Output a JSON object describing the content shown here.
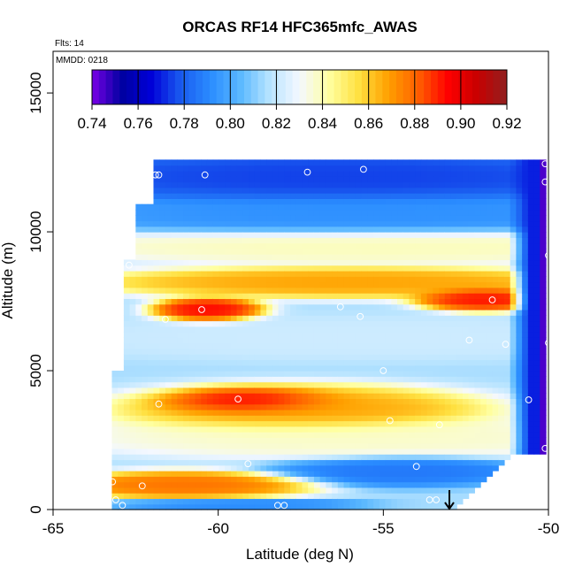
{
  "chart_data": {
    "type": "heatmap",
    "title": "ORCAS RF14 HFC365mfc_AWAS",
    "flights_label": "Flts: 14",
    "date_label": "MMDD: 0218",
    "xlabel": "Latitude (deg N)",
    "ylabel": "Altitude (m)",
    "xlim": [
      -65,
      -50
    ],
    "ylim": [
      0,
      16500
    ],
    "x_ticks": [
      -65,
      -60,
      -55,
      -50
    ],
    "x_tick_labels": [
      "-65",
      "-60",
      "-55",
      "-50"
    ],
    "y_ticks": [
      0,
      5000,
      10000,
      15000
    ],
    "y_tick_labels": [
      "0",
      "5000",
      "10000",
      "15000"
    ],
    "colorbar": {
      "range": [
        0.74,
        0.92
      ],
      "ticks": [
        0.74,
        0.76,
        0.78,
        0.8,
        0.82,
        0.84,
        0.86,
        0.88,
        0.9,
        0.92
      ],
      "tick_labels": [
        "0.74",
        "0.76",
        "0.78",
        "0.80",
        "0.82",
        "0.84",
        "0.86",
        "0.88",
        "0.90",
        "0.92"
      ],
      "colors": [
        "#7a00e6",
        "#0000a0",
        "#0000d8",
        "#1a5cf0",
        "#2a8cff",
        "#5ab8ff",
        "#b8e4ff",
        "#f4f8ff",
        "#ffffa0",
        "#ffe040",
        "#ffa000",
        "#ff6000",
        "#ff0000",
        "#c80000",
        "#902020"
      ]
    },
    "field": {
      "lat_range": [
        -63.4,
        -50.0
      ],
      "alt_range": [
        0,
        12500
      ],
      "layers": [
        {
          "alt": 12000,
          "lat_c": -56.5,
          "lat_w": 10,
          "alt_w": 900,
          "value": 0.773
        },
        {
          "alt": 10600,
          "lat_c": -55.5,
          "lat_w": 9,
          "alt_w": 700,
          "value": 0.792
        },
        {
          "alt": 9500,
          "lat_c": -55.0,
          "lat_w": 10,
          "alt_w": 600,
          "value": 0.84
        },
        {
          "alt": 8200,
          "lat_c": -56.0,
          "lat_w": 7,
          "alt_w": 500,
          "value": 0.87
        },
        {
          "alt": 7600,
          "lat_c": -52.0,
          "lat_w": 1.8,
          "alt_w": 400,
          "value": 0.895
        },
        {
          "alt": 7200,
          "lat_c": -60.3,
          "lat_w": 1.5,
          "alt_w": 400,
          "value": 0.897
        },
        {
          "alt": 6200,
          "lat_c": -56.0,
          "lat_w": 9,
          "alt_w": 700,
          "value": 0.822
        },
        {
          "alt": 3900,
          "lat_c": -59.0,
          "lat_w": 2.4,
          "alt_w": 450,
          "value": 0.905
        },
        {
          "alt": 3600,
          "lat_c": -57.5,
          "lat_w": 5,
          "alt_w": 800,
          "value": 0.87
        },
        {
          "alt": 2600,
          "lat_c": -56.0,
          "lat_w": 8,
          "alt_w": 700,
          "value": 0.838
        },
        {
          "alt": 1400,
          "lat_c": -54.5,
          "lat_w": 3.5,
          "alt_w": 500,
          "value": 0.785
        },
        {
          "alt": 900,
          "lat_c": -61.0,
          "lat_w": 3.5,
          "alt_w": 450,
          "value": 0.88
        },
        {
          "alt": 200,
          "lat_c": -59.5,
          "lat_w": 3.5,
          "alt_w": 200,
          "value": 0.79
        }
      ],
      "east_edge": {
        "lat_start": -51.2,
        "value": 0.77
      },
      "far_east_edge": {
        "lat_start": -50.3,
        "value": 0.745
      }
    },
    "samples": [
      {
        "lat": -61.9,
        "alt": 12050
      },
      {
        "lat": -61.8,
        "alt": 12050
      },
      {
        "lat": -60.4,
        "alt": 12050
      },
      {
        "lat": -57.3,
        "alt": 12150
      },
      {
        "lat": -55.6,
        "alt": 12250
      },
      {
        "lat": -50.1,
        "alt": 12450
      },
      {
        "lat": -50.1,
        "alt": 11800
      },
      {
        "lat": -50.0,
        "alt": 9150
      },
      {
        "lat": -62.7,
        "alt": 8800
      },
      {
        "lat": -51.7,
        "alt": 7550
      },
      {
        "lat": -60.5,
        "alt": 7200
      },
      {
        "lat": -56.3,
        "alt": 7300
      },
      {
        "lat": -55.7,
        "alt": 6950
      },
      {
        "lat": -61.6,
        "alt": 6850
      },
      {
        "lat": -52.4,
        "alt": 6100
      },
      {
        "lat": -51.3,
        "alt": 5950
      },
      {
        "lat": -50.0,
        "alt": 6000
      },
      {
        "lat": -55.0,
        "alt": 5000
      },
      {
        "lat": -59.4,
        "alt": 3980
      },
      {
        "lat": -61.8,
        "alt": 3800
      },
      {
        "lat": -50.6,
        "alt": 3950
      },
      {
        "lat": -54.8,
        "alt": 3200
      },
      {
        "lat": -53.3,
        "alt": 3050
      },
      {
        "lat": -50.1,
        "alt": 2200
      },
      {
        "lat": -59.1,
        "alt": 1650
      },
      {
        "lat": -54.0,
        "alt": 1550
      },
      {
        "lat": -63.2,
        "alt": 1000
      },
      {
        "lat": -62.3,
        "alt": 850
      },
      {
        "lat": -53.6,
        "alt": 350
      },
      {
        "lat": -53.4,
        "alt": 350
      },
      {
        "lat": -63.1,
        "alt": 350
      },
      {
        "lat": -62.9,
        "alt": 150
      },
      {
        "lat": -58.2,
        "alt": 150
      },
      {
        "lat": -58.0,
        "alt": 150
      }
    ],
    "arrow": {
      "lat": -53.0,
      "alt_top": 700,
      "alt_bottom": 0
    }
  }
}
